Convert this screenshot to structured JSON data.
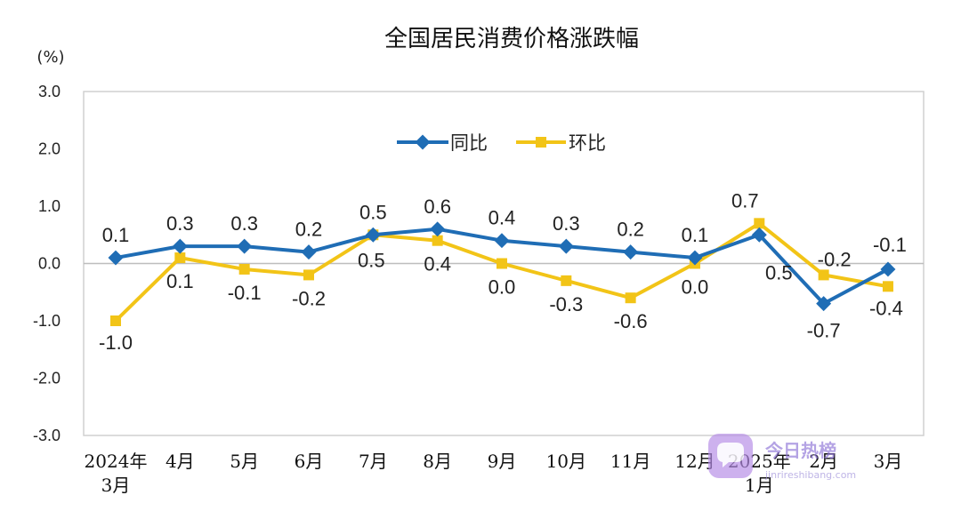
{
  "chart_data": {
    "type": "line",
    "title": "全国居民消费价格涨跌幅",
    "unit": "(%)",
    "ylim": [
      -3.0,
      3.0
    ],
    "yticks": [
      "3.0",
      "2.0",
      "1.0",
      "0.0",
      "-1.0",
      "-2.0",
      "-3.0"
    ],
    "categories": [
      [
        "2024年",
        "3月"
      ],
      [
        "4月"
      ],
      [
        "5月"
      ],
      [
        "6月"
      ],
      [
        "7月"
      ],
      [
        "8月"
      ],
      [
        "9月"
      ],
      [
        "10月"
      ],
      [
        "11月"
      ],
      [
        "12月"
      ],
      [
        "2025年",
        "1月"
      ],
      [
        "2月"
      ],
      [
        "3月"
      ]
    ],
    "legend_position": "top-center",
    "grid": false,
    "series": [
      {
        "name": "同比",
        "color": "#1f6db5",
        "marker": "diamond",
        "values": [
          0.1,
          0.3,
          0.3,
          0.2,
          0.5,
          0.6,
          0.4,
          0.3,
          0.2,
          0.1,
          0.5,
          -0.7,
          -0.1
        ]
      },
      {
        "name": "环比",
        "color": "#f2c417",
        "marker": "square",
        "values": [
          -1.0,
          0.1,
          -0.1,
          -0.2,
          0.5,
          0.4,
          0.0,
          -0.3,
          -0.6,
          0.0,
          0.7,
          -0.2,
          -0.4
        ]
      }
    ],
    "data_labels": {
      "同比": [
        "0.1",
        "0.3",
        "0.3",
        "0.2",
        "0.5",
        "0.6",
        "0.4",
        "0.3",
        "0.2",
        "0.1",
        "0.5",
        "-0.7",
        "-0.1"
      ],
      "环比": [
        "-1.0",
        "0.1",
        "-0.1",
        "-0.2",
        "0.5",
        "0.4",
        "0.0",
        "-0.3",
        "-0.6",
        "0.0",
        "0.7",
        "-0.2",
        "-0.4"
      ]
    }
  },
  "watermark": {
    "text": "今日热榜",
    "sub": "jinrireshibang.com",
    "icon": "chat-bubble-icon"
  }
}
